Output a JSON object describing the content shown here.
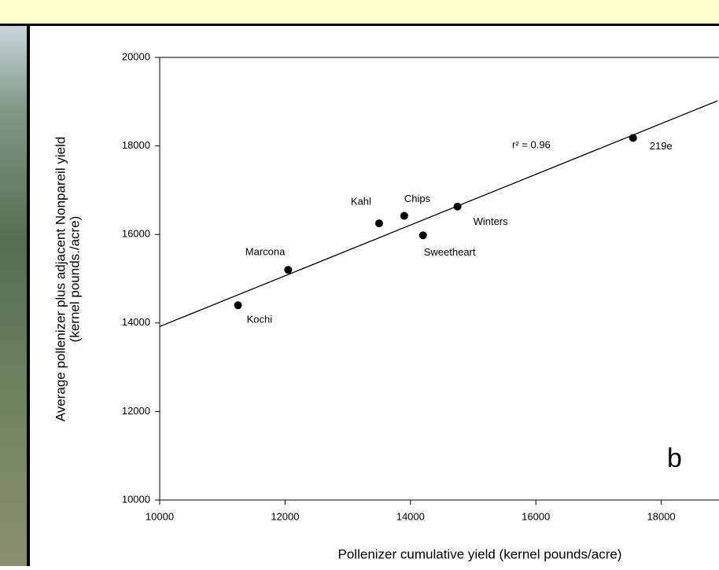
{
  "chart_data": {
    "type": "scatter",
    "xlabel": "Pollenizer cumulative yield (kernel pounds/acre)",
    "ylabel": [
      "Average pollenizer plus adjacent Nonpareil yield",
      "(kernel pounds./acre)"
    ],
    "categories": [
      "Kochi",
      "Marcona",
      "Kahl",
      "Chips",
      "Sweetheart",
      "Winters",
      "219e"
    ],
    "x": [
      11250,
      12050,
      13500,
      13900,
      14200,
      14750,
      17550
    ],
    "values": [
      14400,
      15200,
      16250,
      16420,
      15980,
      16630,
      18180
    ],
    "color": "#000000",
    "trendline": {
      "x": [
        10000,
        18900
      ],
      "values": [
        13920,
        19020
      ]
    },
    "annotations": [
      "r² = 0.96",
      "b"
    ],
    "xlim": [
      10000,
      18900
    ],
    "ylim": [
      10000,
      20000
    ],
    "xticks": [
      10000,
      12000,
      14000,
      16000,
      18000
    ],
    "yticks": [
      10000,
      12000,
      14000,
      16000,
      18000,
      20000
    ]
  }
}
